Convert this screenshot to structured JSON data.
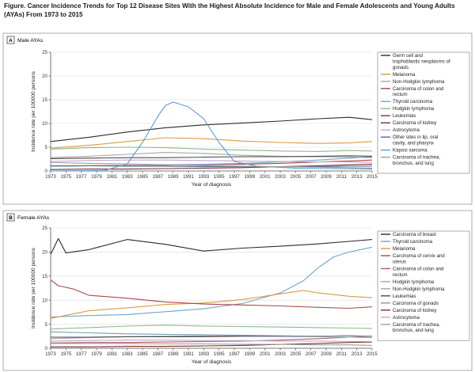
{
  "figure": {
    "title": "Figure. Cancer Incidence Trends for Top 12 Disease Sites With the Highest Absolute Incidence for Male and Female Adolescents and Young Adults (AYAs) From 1973 to 2015"
  },
  "chart_data": [
    {
      "type": "line",
      "panel_label": "A",
      "title": "Male AYAs",
      "xlabel": "Year of diagnosis",
      "ylabel": "Incidence rate per 100000 persons",
      "xlim": [
        1973,
        2015
      ],
      "ylim": [
        0,
        25
      ],
      "yticks": [
        0,
        5,
        10,
        15,
        20,
        25
      ],
      "xticks": [
        1973,
        1975,
        1977,
        1979,
        1981,
        1983,
        1985,
        1987,
        1989,
        1991,
        1993,
        1995,
        1997,
        1999,
        2001,
        2003,
        2005,
        2007,
        2009,
        2011,
        2013,
        2015
      ],
      "grid": true,
      "legend_position": "right",
      "series": [
        {
          "name": "Germ cell and trophoblastic neoplasms of gonads",
          "color": "#2b2b2b",
          "x": [
            1973,
            1978,
            1983,
            1988,
            1993,
            1998,
            2003,
            2008,
            2012,
            2015
          ],
          "y": [
            6.2,
            7.1,
            8.2,
            9.1,
            9.7,
            10.1,
            10.5,
            11.0,
            11.3,
            10.8
          ]
        },
        {
          "name": "Melanoma",
          "color": "#d99a45",
          "x": [
            1973,
            1978,
            1983,
            1988,
            1993,
            1998,
            2003,
            2008,
            2012,
            2015
          ],
          "y": [
            4.8,
            5.4,
            6.2,
            7.0,
            6.8,
            6.3,
            6.0,
            5.8,
            5.9,
            6.2
          ]
        },
        {
          "name": "Non-Hodgkin lymphoma",
          "color": "#a5a5a5",
          "x": [
            1973,
            1978,
            1983,
            1988,
            1993,
            1998,
            2003,
            2008,
            2012,
            2015
          ],
          "y": [
            2.8,
            3.1,
            3.5,
            3.9,
            3.7,
            3.3,
            3.1,
            3.0,
            2.9,
            2.8
          ]
        },
        {
          "name": "Carcinoma of colon and rectum",
          "color": "#a94a48",
          "x": [
            1973,
            1978,
            1983,
            1988,
            1993,
            1998,
            2003,
            2008,
            2012,
            2015
          ],
          "y": [
            1.0,
            1.1,
            1.2,
            1.2,
            1.3,
            1.4,
            1.6,
            1.9,
            2.1,
            2.3
          ]
        },
        {
          "name": "Thyroid carcinoma",
          "color": "#6fa6c6",
          "x": [
            1973,
            1978,
            1983,
            1988,
            1993,
            1998,
            2003,
            2008,
            2012,
            2015
          ],
          "y": [
            1.0,
            1.1,
            1.1,
            1.3,
            1.4,
            1.6,
            1.9,
            2.3,
            2.7,
            3.0
          ]
        },
        {
          "name": "Hodgkin lymphoma",
          "color": "#8fb98d",
          "x": [
            1973,
            1978,
            1983,
            1988,
            1993,
            1998,
            2003,
            2008,
            2012,
            2015
          ],
          "y": [
            4.6,
            4.9,
            5.0,
            4.9,
            4.6,
            4.4,
            4.2,
            4.1,
            4.3,
            4.2
          ]
        },
        {
          "name": "Leukemias",
          "color": "#4b4b4b",
          "x": [
            1973,
            1978,
            1983,
            1988,
            1993,
            1998,
            2003,
            2008,
            2012,
            2015
          ],
          "y": [
            2.6,
            2.7,
            2.8,
            2.8,
            2.9,
            3.0,
            3.0,
            3.1,
            3.2,
            3.1
          ]
        },
        {
          "name": "Carcinoma of kidney",
          "color": "#7e2f30",
          "x": [
            1973,
            1978,
            1983,
            1988,
            1993,
            1998,
            2003,
            2008,
            2012,
            2015
          ],
          "y": [
            0.3,
            0.4,
            0.4,
            0.5,
            0.6,
            0.7,
            0.9,
            1.1,
            1.3,
            1.4
          ]
        },
        {
          "name": "Astrocytoma",
          "color": "#c2a6cf",
          "x": [
            1973,
            1978,
            1983,
            1988,
            1993,
            1998,
            2003,
            2008,
            2012,
            2015
          ],
          "y": [
            2.0,
            2.2,
            2.3,
            2.3,
            2.2,
            2.1,
            2.0,
            1.9,
            1.9,
            1.8
          ]
        },
        {
          "name": "Other sites in lip, oral cavity, and pharynx",
          "color": "#5a6e8c",
          "x": [
            1973,
            1978,
            1983,
            1988,
            1993,
            1998,
            2003,
            2008,
            2012,
            2015
          ],
          "y": [
            1.1,
            1.1,
            1.0,
            1.0,
            0.9,
            0.9,
            0.9,
            0.9,
            1.0,
            1.0
          ]
        },
        {
          "name": "Kaposi sarcoma",
          "color": "#5b9bd5",
          "x": [
            1973,
            1980,
            1983,
            1985,
            1987,
            1988,
            1989,
            1991,
            1993,
            1995,
            1997,
            2000,
            2005,
            2010,
            2015
          ],
          "y": [
            0.0,
            0.1,
            1.5,
            6.0,
            11.5,
            13.8,
            14.5,
            13.5,
            11.0,
            6.0,
            2.0,
            1.0,
            0.6,
            0.5,
            0.4
          ]
        },
        {
          "name": "Carcinoma of trachea, bronchus, and lung",
          "color": "#9e9e9e",
          "x": [
            1973,
            1978,
            1983,
            1988,
            1993,
            1998,
            2003,
            2008,
            2012,
            2015
          ],
          "y": [
            1.8,
            1.6,
            1.5,
            1.3,
            1.1,
            1.0,
            0.9,
            0.8,
            0.7,
            0.6
          ]
        }
      ]
    },
    {
      "type": "line",
      "panel_label": "B",
      "title": "Female AYAs",
      "xlabel": "Year of diagnosis",
      "ylabel": "Incidence rate per 100000 persons",
      "xlim": [
        1973,
        2015
      ],
      "ylim": [
        0,
        25
      ],
      "yticks": [
        0,
        5,
        10,
        15,
        20,
        25
      ],
      "xticks": [
        1973,
        1975,
        1977,
        1979,
        1981,
        1983,
        1985,
        1987,
        1989,
        1991,
        1993,
        1995,
        1997,
        1999,
        2001,
        2003,
        2005,
        2007,
        2009,
        2011,
        2013,
        2015
      ],
      "grid": true,
      "legend_position": "right",
      "series": [
        {
          "name": "Carcinoma of breast",
          "color": "#2b2b2b",
          "x": [
            1973,
            1974,
            1975,
            1978,
            1983,
            1988,
            1993,
            1998,
            2003,
            2008,
            2012,
            2015
          ],
          "y": [
            19.5,
            22.8,
            19.8,
            20.5,
            22.6,
            21.6,
            20.2,
            20.8,
            21.2,
            21.7,
            22.2,
            22.6
          ]
        },
        {
          "name": "Thyroid carcinoma",
          "color": "#6fa6c6",
          "x": [
            1973,
            1978,
            1983,
            1988,
            1993,
            1998,
            2003,
            2006,
            2008,
            2010,
            2012,
            2015
          ],
          "y": [
            6.5,
            6.8,
            7.0,
            7.6,
            8.2,
            9.3,
            11.5,
            14.0,
            16.8,
            19.0,
            20.0,
            21.0
          ]
        },
        {
          "name": "Melanoma",
          "color": "#d99a45",
          "x": [
            1973,
            1978,
            1983,
            1988,
            1993,
            1998,
            2003,
            2006,
            2008,
            2012,
            2015
          ],
          "y": [
            6.2,
            7.8,
            8.4,
            9.1,
            9.4,
            10.1,
            11.3,
            12.0,
            11.5,
            10.8,
            10.5
          ]
        },
        {
          "name": "Carcinoma of cervix and uterus",
          "color": "#a94a48",
          "x": [
            1973,
            1974,
            1976,
            1978,
            1983,
            1988,
            1993,
            1998,
            2003,
            2008,
            2012,
            2015
          ],
          "y": [
            14.2,
            13.0,
            12.3,
            11.0,
            10.4,
            9.6,
            9.2,
            9.0,
            8.8,
            8.5,
            8.3,
            8.6
          ]
        },
        {
          "name": "Carcinoma of colon and rectum",
          "color": "#b65e5c",
          "x": [
            1973,
            1978,
            1983,
            1988,
            1993,
            1998,
            2003,
            2008,
            2012,
            2015
          ],
          "y": [
            1.1,
            1.2,
            1.2,
            1.3,
            1.4,
            1.5,
            1.7,
            2.0,
            2.3,
            2.5
          ]
        },
        {
          "name": "Hodgkin lymphoma",
          "color": "#8fb98d",
          "x": [
            1973,
            1978,
            1983,
            1988,
            1993,
            1998,
            2003,
            2008,
            2012,
            2015
          ],
          "y": [
            4.0,
            4.3,
            4.6,
            4.8,
            4.6,
            4.5,
            4.4,
            4.3,
            4.2,
            4.1
          ]
        },
        {
          "name": "Non-Hodgkin lymphoma",
          "color": "#a5a5a5",
          "x": [
            1973,
            1978,
            1983,
            1988,
            1993,
            1998,
            2003,
            2008,
            2012,
            2015
          ],
          "y": [
            2.0,
            2.2,
            2.4,
            2.5,
            2.6,
            2.6,
            2.5,
            2.4,
            2.3,
            2.2
          ]
        },
        {
          "name": "Leukemias",
          "color": "#4b4b4b",
          "x": [
            1973,
            1978,
            1983,
            1988,
            1993,
            1998,
            2003,
            2008,
            2012,
            2015
          ],
          "y": [
            2.3,
            2.3,
            2.4,
            2.4,
            2.4,
            2.5,
            2.5,
            2.5,
            2.6,
            2.5
          ]
        },
        {
          "name": "Carcinoma of gonads",
          "color": "#7a9bb5",
          "x": [
            1973,
            1978,
            1983,
            1988,
            1993,
            1998,
            2003,
            2008,
            2012,
            2015
          ],
          "y": [
            3.4,
            3.2,
            3.0,
            2.9,
            2.8,
            2.7,
            2.6,
            2.5,
            2.6,
            2.5
          ]
        },
        {
          "name": "Carcinoma of kidney",
          "color": "#7e2f30",
          "x": [
            1973,
            1978,
            1983,
            1988,
            1993,
            1998,
            2003,
            2008,
            2012,
            2015
          ],
          "y": [
            0.3,
            0.3,
            0.4,
            0.4,
            0.5,
            0.6,
            0.8,
            1.0,
            1.2,
            1.3
          ]
        },
        {
          "name": "Astrocytoma",
          "color": "#c2a6cf",
          "x": [
            1973,
            1978,
            1983,
            1988,
            1993,
            1998,
            2003,
            2008,
            2012,
            2015
          ],
          "y": [
            1.5,
            1.6,
            1.7,
            1.7,
            1.6,
            1.6,
            1.5,
            1.5,
            1.4,
            1.4
          ]
        },
        {
          "name": "Carcinoma of trachea, bronchus, and lung",
          "color": "#9e9e9e",
          "x": [
            1973,
            1978,
            1983,
            1988,
            1993,
            1998,
            2003,
            2008,
            2012,
            2015
          ],
          "y": [
            1.0,
            1.0,
            1.0,
            0.9,
            0.9,
            0.8,
            0.8,
            0.7,
            0.7,
            0.6
          ]
        }
      ]
    }
  ]
}
